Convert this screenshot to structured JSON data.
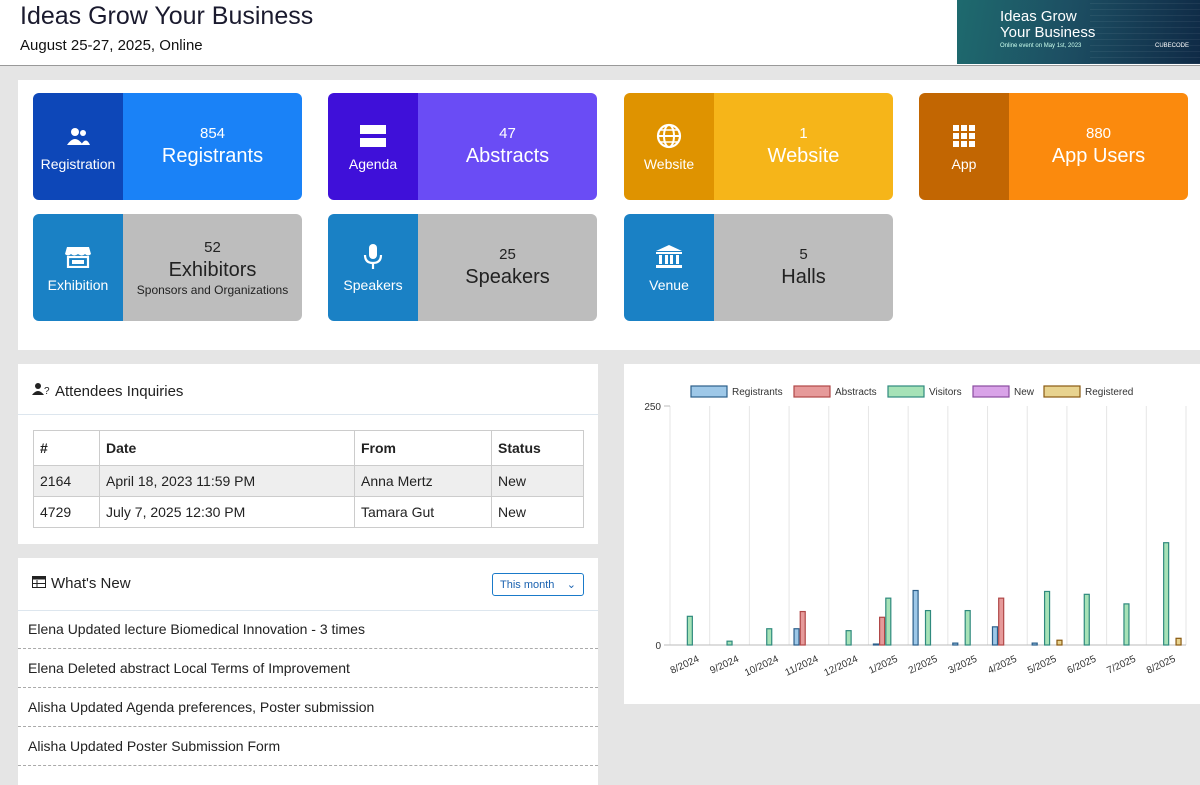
{
  "header": {
    "title": "Ideas Grow Your Business",
    "subtitle": "August 25-27, 2025, Online",
    "banner": {
      "line1": "Ideas Grow",
      "line2": "Your Business",
      "line3": "Online event on May 1st, 2023",
      "logo": "CUBECODE"
    }
  },
  "tiles": [
    {
      "label": "Registration",
      "count": "854",
      "title": "Registrants",
      "sub": "",
      "icon": "users-icon",
      "left_color": "#0d47b8",
      "right_color": "#1a82f7"
    },
    {
      "label": "Agenda",
      "count": "47",
      "title": "Abstracts",
      "sub": "",
      "icon": "agenda-icon",
      "left_color": "#3f10d9",
      "right_color": "#6a4cf5"
    },
    {
      "label": "Website",
      "count": "1",
      "title": "Website",
      "sub": "",
      "icon": "globe-icon",
      "left_color": "#df9300",
      "right_color": "#f6b519"
    },
    {
      "label": "App",
      "count": "880",
      "title": "App Users",
      "sub": "",
      "icon": "grid-icon",
      "left_color": "#c26602",
      "right_color": "#fb8a0d"
    },
    {
      "label": "Exhibition",
      "count": "52",
      "title": "Exhibitors",
      "sub": "Sponsors and Organizations",
      "icon": "store-icon",
      "left_color": "#1a81c5",
      "right_color": "#bdbdbd"
    },
    {
      "label": "Speakers",
      "count": "25",
      "title": "Speakers",
      "sub": "",
      "icon": "microphone-icon",
      "left_color": "#1a81c5",
      "right_color": "#bdbdbd"
    },
    {
      "label": "Venue",
      "count": "5",
      "title": "Halls",
      "sub": "",
      "icon": "bank-icon",
      "left_color": "#1a81c5",
      "right_color": "#bdbdbd"
    }
  ],
  "inquiries": {
    "title": "Attendees Inquiries",
    "columns": [
      "#",
      "Date",
      "From",
      "Status"
    ],
    "rows": [
      {
        "id": "2164",
        "date": "April 18, 2023 11:59 PM",
        "from": "Anna Mertz",
        "status": "New"
      },
      {
        "id": "4729",
        "date": "July 7, 2025 12:30 PM",
        "from": "Tamara Gut",
        "status": "New"
      }
    ]
  },
  "whats_new": {
    "title": "What's New",
    "filter": "This month",
    "items": [
      "Elena Updated lecture Biomedical Innovation - 3 times",
      "Elena Deleted abstract Local Terms of Improvement",
      "Alisha Updated Agenda preferences, Poster submission",
      "Alisha Updated Poster Submission Form"
    ]
  },
  "chart_data": {
    "type": "bar",
    "legend_position": "top",
    "grid": true,
    "ylim": [
      0,
      250
    ],
    "y_ticks": [
      "250",
      "0"
    ],
    "categories": [
      "8/2024",
      "9/2024",
      "10/2024",
      "11/2024",
      "12/2024",
      "1/2025",
      "2/2025",
      "3/2025",
      "4/2025",
      "5/2025",
      "6/2025",
      "7/2025",
      "8/2025"
    ],
    "series": [
      {
        "name": "Registrants",
        "color": "#9ec8e8",
        "stroke": "#2c5f8a",
        "values": [
          0,
          0,
          0,
          17,
          0,
          1,
          57,
          2,
          19,
          2,
          0,
          0,
          0
        ]
      },
      {
        "name": "Abstracts",
        "color": "#e69a9a",
        "stroke": "#b04848",
        "values": [
          0,
          0,
          0,
          35,
          0,
          29,
          0,
          0,
          49,
          0,
          0,
          0,
          0
        ]
      },
      {
        "name": "Visitors",
        "color": "#a6e2b7",
        "stroke": "#2f8a7e",
        "values": [
          30,
          4,
          17,
          0,
          15,
          49,
          36,
          36,
          0,
          56,
          53,
          43,
          107
        ]
      },
      {
        "name": "New",
        "color": "#d9a3e8",
        "stroke": "#8a4ca0",
        "values": [
          0,
          0,
          0,
          0,
          0,
          0,
          0,
          0,
          0,
          0,
          0,
          0,
          0
        ]
      },
      {
        "name": "Registered",
        "color": "#e8d38f",
        "stroke": "#8a5a12",
        "values": [
          0,
          0,
          0,
          0,
          0,
          0,
          0,
          0,
          0,
          5,
          0,
          0,
          7
        ]
      }
    ]
  }
}
